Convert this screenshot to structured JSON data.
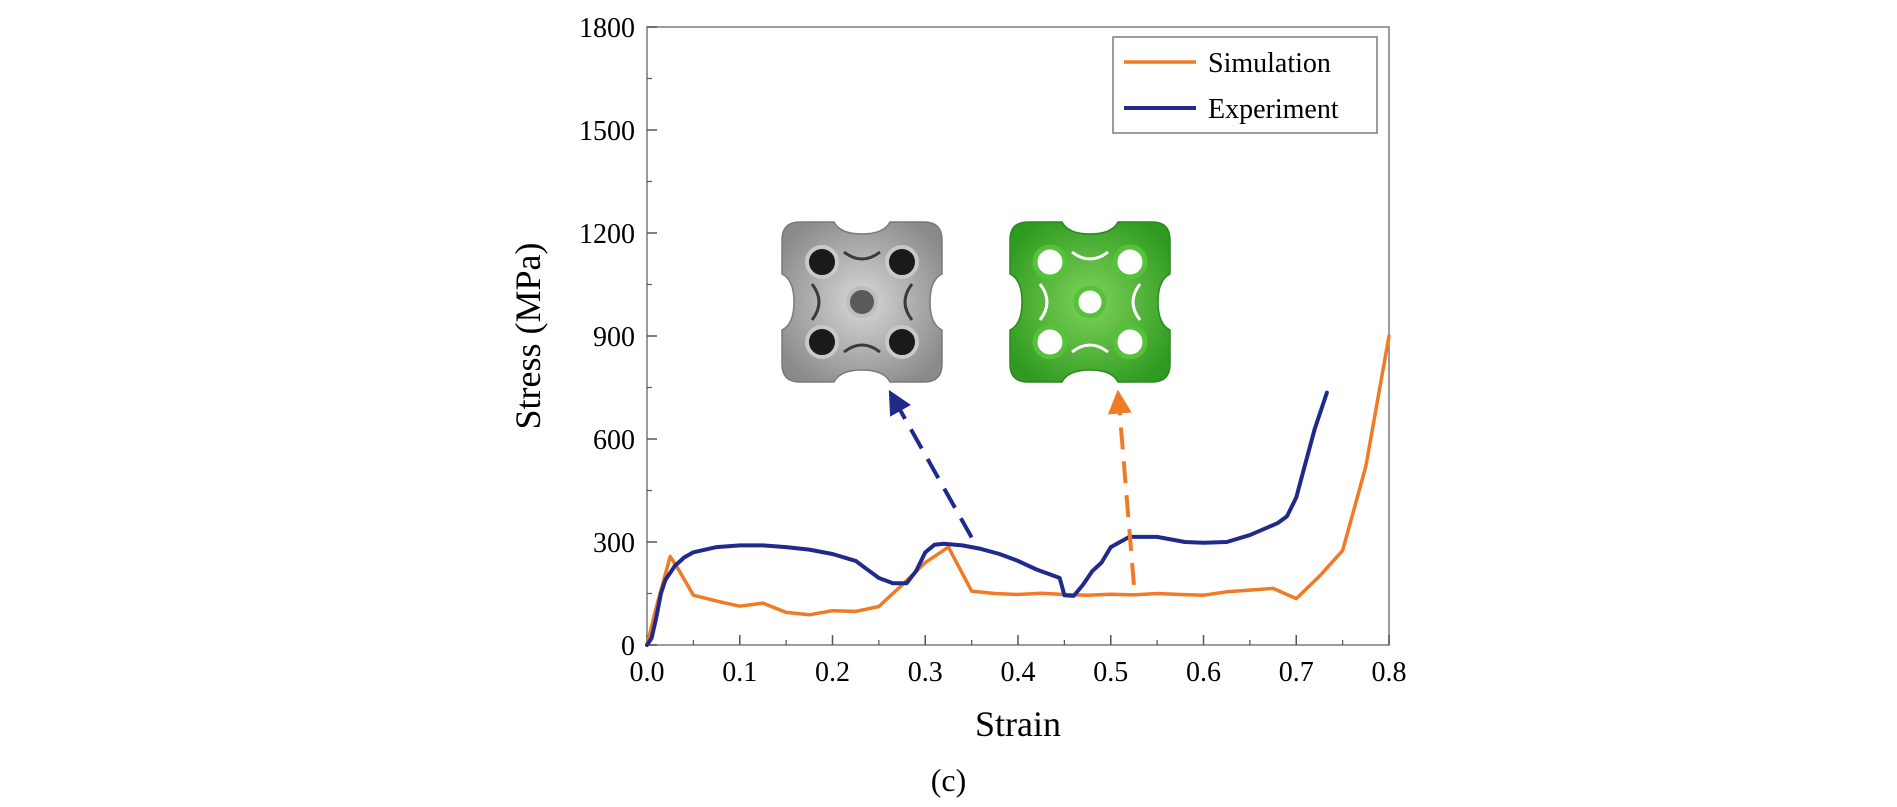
{
  "caption": "(c)",
  "colors": {
    "simulation": "#f07a25",
    "experiment": "#1f2a8a",
    "grey_lattice": "#9a9a9a",
    "green_lattice": "#3fae2b"
  },
  "icons": [
    "grey-lattice-inset-icon",
    "green-lattice-inset-icon"
  ],
  "chart_data": {
    "type": "line",
    "title": "",
    "xlabel": "Strain",
    "ylabel": "Stress (MPa)",
    "xlim": [
      0.0,
      0.8
    ],
    "ylim": [
      0,
      1800
    ],
    "xticks": [
      "0.0",
      "0.1",
      "0.2",
      "0.3",
      "0.4",
      "0.5",
      "0.6",
      "0.7",
      "0.8"
    ],
    "yticks": [
      "0",
      "300",
      "600",
      "900",
      "1200",
      "1500",
      "1800"
    ],
    "legend": {
      "position": "top-right",
      "entries": [
        "Simulation",
        "Experiment"
      ]
    },
    "series": [
      {
        "name": "Simulation",
        "x": [
          0.0,
          0.01,
          0.025,
          0.035,
          0.05,
          0.075,
          0.1,
          0.125,
          0.15,
          0.175,
          0.2,
          0.225,
          0.25,
          0.275,
          0.3,
          0.325,
          0.35,
          0.375,
          0.4,
          0.425,
          0.45,
          0.475,
          0.5,
          0.525,
          0.55,
          0.575,
          0.6,
          0.625,
          0.65,
          0.675,
          0.7,
          0.725,
          0.75,
          0.775,
          0.8
        ],
        "y": [
          0,
          110,
          258,
          215,
          145,
          128,
          113,
          122,
          95,
          88,
          100,
          98,
          112,
          175,
          240,
          285,
          157,
          150,
          147,
          151,
          147,
          145,
          148,
          146,
          150,
          147,
          145,
          155,
          160,
          165,
          135,
          200,
          275,
          520,
          900
        ]
      },
      {
        "name": "Experiment",
        "x": [
          0.0,
          0.005,
          0.01,
          0.015,
          0.02,
          0.03,
          0.04,
          0.05,
          0.075,
          0.1,
          0.125,
          0.15,
          0.175,
          0.2,
          0.225,
          0.235,
          0.25,
          0.265,
          0.28,
          0.29,
          0.3,
          0.31,
          0.32,
          0.34,
          0.36,
          0.38,
          0.4,
          0.42,
          0.44,
          0.445,
          0.45,
          0.46,
          0.47,
          0.48,
          0.49,
          0.5,
          0.52,
          0.55,
          0.58,
          0.6,
          0.625,
          0.65,
          0.68,
          0.69,
          0.7,
          0.71,
          0.72,
          0.733
        ],
        "y": [
          0,
          20,
          80,
          150,
          190,
          230,
          255,
          270,
          285,
          290,
          290,
          285,
          278,
          265,
          245,
          225,
          195,
          180,
          180,
          215,
          270,
          292,
          295,
          290,
          280,
          265,
          245,
          220,
          200,
          195,
          145,
          143,
          175,
          215,
          240,
          285,
          315,
          315,
          300,
          298,
          300,
          320,
          355,
          375,
          430,
          530,
          630,
          735
        ]
      }
    ],
    "annotations": [
      {
        "type": "dashed-arrow",
        "series": "Experiment",
        "from": [
          0.35,
          290
        ],
        "to_inset": "grey-lattice-inset-icon"
      },
      {
        "type": "dashed-arrow",
        "series": "Simulation",
        "from": [
          0.525,
          146
        ],
        "to_inset": "green-lattice-inset-icon"
      }
    ]
  }
}
